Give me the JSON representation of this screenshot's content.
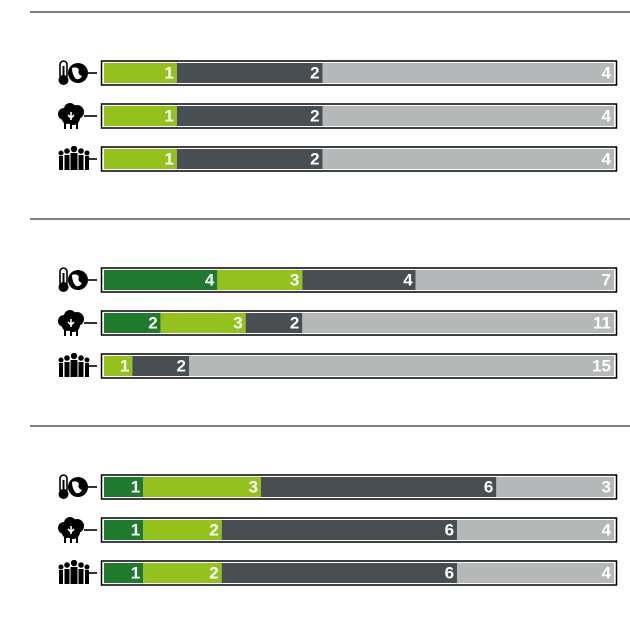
{
  "colors": [
    "#1f7a30",
    "#95c11f",
    "#494e53",
    "#b4b8b9"
  ],
  "groups": [
    {
      "rows": [
        {
          "values": [
            null,
            1,
            2,
            4
          ]
        },
        {
          "values": [
            null,
            1,
            2,
            4
          ]
        },
        {
          "values": [
            null,
            1,
            2,
            4
          ]
        }
      ]
    },
    {
      "rows": [
        {
          "values": [
            4,
            3,
            4,
            7
          ]
        },
        {
          "values": [
            2,
            3,
            2,
            11
          ]
        },
        {
          "values": [
            null,
            1,
            2,
            15
          ]
        }
      ]
    },
    {
      "rows": [
        {
          "values": [
            1,
            3,
            6,
            3
          ]
        },
        {
          "values": [
            1,
            2,
            6,
            4
          ]
        },
        {
          "values": [
            1,
            2,
            6,
            4
          ]
        }
      ]
    }
  ]
}
